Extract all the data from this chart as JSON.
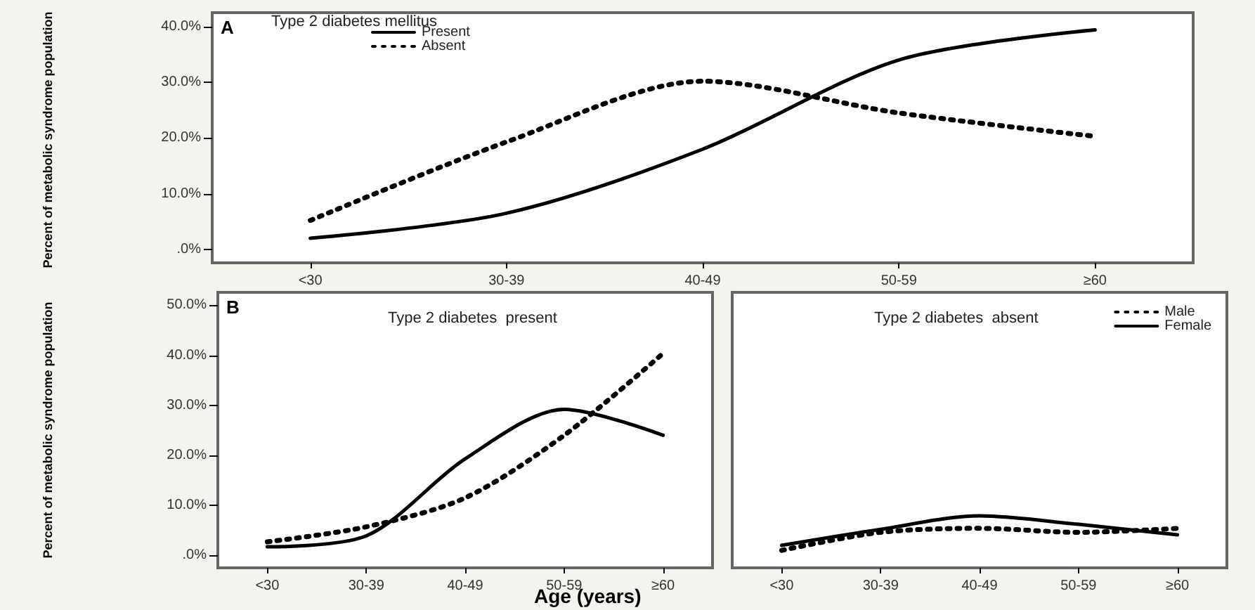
{
  "chart_data": [
    {
      "type": "line",
      "legend_title": "Type 2 diabetes mellitus",
      "annotations": [
        "A"
      ],
      "ylabel": "Percent of metabolic syndrome population",
      "legend": "top left",
      "marker": "none",
      "categories": [
        "<30",
        "30-39",
        "40-49",
        "50-59",
        "≥60"
      ],
      "ylim": [
        -2.4,
        42.5
      ],
      "yticks": [
        {
          "value": 0,
          "label": ".0%"
        },
        {
          "value": 10,
          "label": "10.0%"
        },
        {
          "value": 20,
          "label": "20.0%"
        },
        {
          "value": 30,
          "label": "30.0%"
        },
        {
          "value": 40,
          "label": "40.0%"
        }
      ],
      "series": [
        {
          "name": "Present",
          "color": "#000000",
          "line_style": "solid",
          "values": [
            2.0,
            6.5,
            18,
            34,
            39.4
          ]
        },
        {
          "name": "Absent",
          "color": "#000000",
          "line_style": "dotted",
          "values": [
            5.2,
            19.3,
            30.2,
            24.5,
            20.3
          ]
        }
      ]
    },
    {
      "type": "line",
      "title": "Type 2 diabetes  present",
      "annotations": [
        "B"
      ],
      "ylabel": "Percent of metabolic syndrome population",
      "xlabel": "Age (years)",
      "marker": "none",
      "categories": [
        "<30",
        "30-39",
        "40-49",
        "50-59",
        "≥60"
      ],
      "ylim": [
        -2.5,
        52.6
      ],
      "yticks": [
        {
          "value": 0,
          "label": ".0%"
        },
        {
          "value": 10,
          "label": "10.0%"
        },
        {
          "value": 20,
          "label": "20.0%"
        },
        {
          "value": 30,
          "label": "30.0%"
        },
        {
          "value": 40,
          "label": "40.0%"
        },
        {
          "value": 50,
          "label": "50.0%"
        }
      ],
      "series": [
        {
          "color": "#000000",
          "line_style": "solid",
          "values": [
            1.7,
            3.9,
            19.3,
            29.2,
            24
          ]
        },
        {
          "color": "#000000",
          "line_style": "dotted",
          "values": [
            2.7,
            5.7,
            11.5,
            24,
            40.4
          ]
        }
      ]
    },
    {
      "type": "line",
      "title": "Type 2 diabetes  absent",
      "legend": "top right",
      "marker": "none",
      "tick_labels": "x",
      "categories": [
        "<30",
        "30-39",
        "40-49",
        "50-59",
        "≥60"
      ],
      "ylim": [
        -2.5,
        52.6
      ],
      "series": [
        {
          "name": "Male",
          "color": "#000000",
          "line_style": "dotted",
          "values": [
            1.0,
            4.6,
            5.4,
            4.6,
            5.4
          ]
        },
        {
          "name": "Female",
          "color": "#000000",
          "line_style": "solid",
          "values": [
            2.0,
            5.2,
            7.9,
            6.2,
            4.1
          ]
        }
      ]
    }
  ]
}
